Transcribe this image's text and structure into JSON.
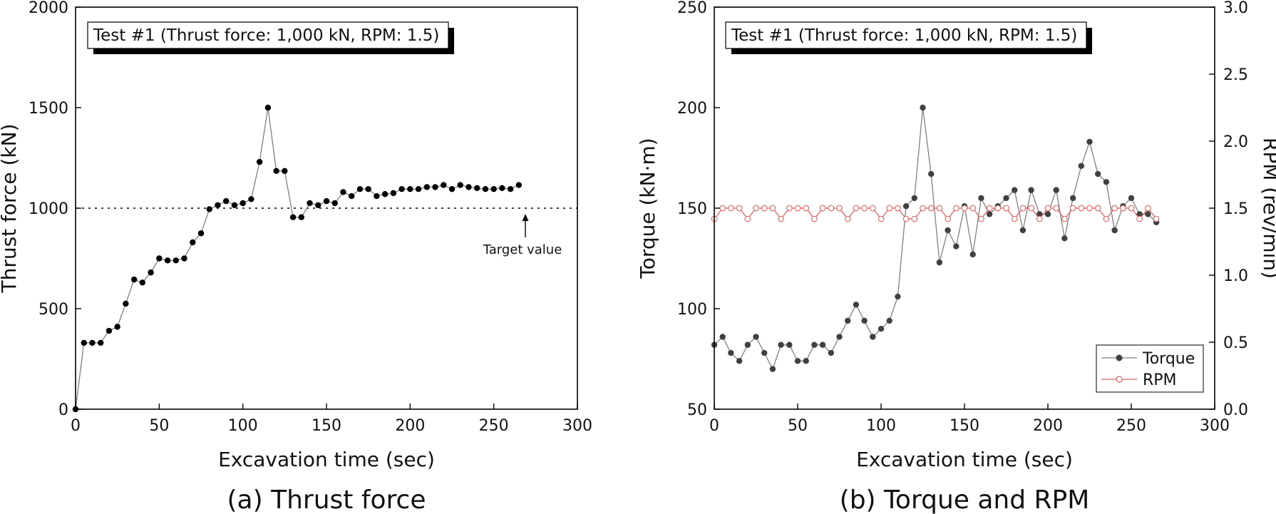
{
  "chart_data": [
    {
      "type": "line",
      "caption": "(a) Thrust force",
      "title": "Test #1 (Thrust force: 1,000 kN, RPM: 1.5)",
      "xlabel": "Excavation time (sec)",
      "ylabel": "Thrust force (kN)",
      "xlim": [
        0,
        300
      ],
      "ylim": [
        0,
        2000
      ],
      "xticks": [
        0,
        50,
        100,
        150,
        200,
        250,
        300
      ],
      "yticks": [
        0,
        500,
        1000,
        1500,
        2000
      ],
      "reference_line": {
        "y": 1000,
        "label": "Target value",
        "style": "dotted"
      },
      "grid": false,
      "series": [
        {
          "color": "#000000",
          "line_color": "#808080",
          "marker": "filled-circle",
          "x": [
            0,
            5,
            10,
            15,
            20,
            25,
            30,
            35,
            40,
            45,
            50,
            55,
            60,
            65,
            70,
            75,
            80,
            85,
            90,
            95,
            100,
            105,
            110,
            115,
            120,
            125,
            130,
            135,
            140,
            145,
            150,
            155,
            160,
            165,
            170,
            175,
            180,
            185,
            190,
            195,
            200,
            205,
            210,
            215,
            220,
            225,
            230,
            235,
            240,
            245,
            250,
            255,
            260,
            265
          ],
          "y": [
            0,
            330,
            330,
            330,
            390,
            410,
            525,
            645,
            630,
            680,
            750,
            740,
            740,
            750,
            830,
            875,
            995,
            1015,
            1035,
            1015,
            1025,
            1045,
            1230,
            1500,
            1185,
            1185,
            955,
            955,
            1025,
            1015,
            1035,
            1025,
            1080,
            1060,
            1095,
            1095,
            1060,
            1070,
            1075,
            1095,
            1095,
            1095,
            1105,
            1105,
            1115,
            1095,
            1115,
            1105,
            1100,
            1095,
            1095,
            1100,
            1095,
            1115
          ]
        }
      ]
    },
    {
      "type": "line",
      "caption": "(b) Torque and RPM",
      "title": "Test #1 (Thrust force: 1,000 kN, RPM: 1.5)",
      "xlabel": "Excavation time (sec)",
      "ylabel": "Torque (kN·m)",
      "y2label": "RPM (rev/min)",
      "xlim": [
        0,
        300
      ],
      "ylim": [
        50,
        250
      ],
      "y2lim": [
        0,
        3.0
      ],
      "xticks": [
        0,
        50,
        100,
        150,
        200,
        250,
        300
      ],
      "yticks": [
        50,
        100,
        150,
        200,
        250
      ],
      "y2ticks": [
        "0.0",
        "0.5",
        "1.0",
        "1.5",
        "2.0",
        "2.5",
        "3.0"
      ],
      "legend": "bottom-right",
      "grid": false,
      "series": [
        {
          "name": "Torque",
          "axis": "left",
          "color": "#404040",
          "line_color": "#808080",
          "marker": "filled-circle",
          "x": [
            0,
            5,
            10,
            15,
            20,
            25,
            30,
            35,
            40,
            45,
            50,
            55,
            60,
            65,
            70,
            75,
            80,
            85,
            90,
            95,
            100,
            105,
            110,
            115,
            120,
            125,
            130,
            135,
            140,
            145,
            150,
            155,
            160,
            165,
            170,
            175,
            180,
            185,
            190,
            195,
            200,
            205,
            210,
            215,
            220,
            225,
            230,
            235,
            240,
            245,
            250,
            255,
            260,
            265
          ],
          "y": [
            82,
            86,
            78,
            74,
            82,
            86,
            78,
            70,
            82,
            82,
            74,
            74,
            82,
            82,
            78,
            86,
            94,
            102,
            94,
            86,
            90,
            94,
            106,
            151,
            155,
            200,
            167,
            123,
            139,
            131,
            151,
            127,
            155,
            147,
            151,
            155,
            159,
            139,
            159,
            147,
            147,
            159,
            135,
            155,
            171,
            183,
            167,
            163,
            139,
            151,
            155,
            147,
            147,
            143
          ]
        },
        {
          "name": "RPM",
          "axis": "right",
          "color": "#e06060",
          "marker": "open-circle",
          "x": [
            0,
            5,
            10,
            15,
            20,
            25,
            30,
            35,
            40,
            45,
            50,
            55,
            60,
            65,
            70,
            75,
            80,
            85,
            90,
            95,
            100,
            105,
            110,
            115,
            120,
            125,
            130,
            135,
            140,
            145,
            150,
            155,
            160,
            165,
            170,
            175,
            180,
            185,
            190,
            195,
            200,
            205,
            210,
            215,
            220,
            225,
            230,
            235,
            240,
            245,
            250,
            255,
            260,
            265
          ],
          "y": [
            1.42,
            1.5,
            1.5,
            1.5,
            1.42,
            1.5,
            1.5,
            1.5,
            1.42,
            1.5,
            1.5,
            1.5,
            1.42,
            1.5,
            1.5,
            1.5,
            1.42,
            1.5,
            1.5,
            1.5,
            1.42,
            1.5,
            1.5,
            1.42,
            1.42,
            1.5,
            1.5,
            1.5,
            1.42,
            1.5,
            1.5,
            1.5,
            1.42,
            1.5,
            1.5,
            1.5,
            1.42,
            1.5,
            1.5,
            1.42,
            1.5,
            1.5,
            1.42,
            1.5,
            1.5,
            1.5,
            1.5,
            1.42,
            1.5,
            1.5,
            1.5,
            1.42,
            1.5,
            1.42
          ]
        }
      ]
    }
  ]
}
